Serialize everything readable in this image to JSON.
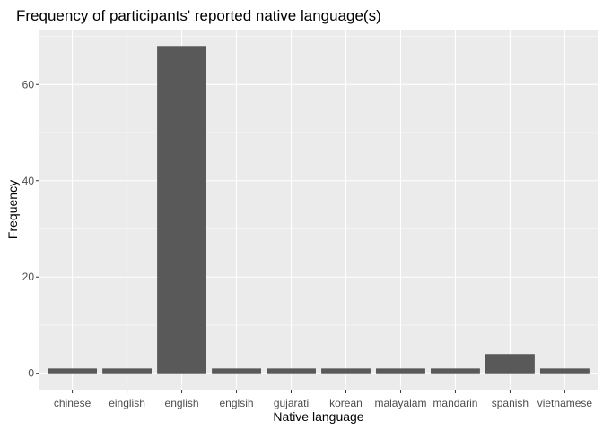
{
  "chart_data": {
    "type": "bar",
    "title": "Frequency of participants' reported native language(s)",
    "xlabel": "Native language",
    "ylabel": "Frequency",
    "categories": [
      "chinese",
      "einglish",
      "english",
      "englsih",
      "gujarati",
      "korean",
      "malayalam",
      "mandarin",
      "spanish",
      "vietnamese"
    ],
    "values": [
      1,
      1,
      68,
      1,
      1,
      1,
      1,
      1,
      4,
      1
    ],
    "yticks": [
      0,
      20,
      40,
      60
    ],
    "ylim": [
      -3.4,
      71.4
    ],
    "grid": true,
    "legend": "none"
  },
  "colors": {
    "panel_background": "#ebebeb",
    "grid_major": "#ffffff",
    "bar_fill": "#595959",
    "tick_text": "#4d4d4d",
    "axis_ticks": "#333333"
  }
}
